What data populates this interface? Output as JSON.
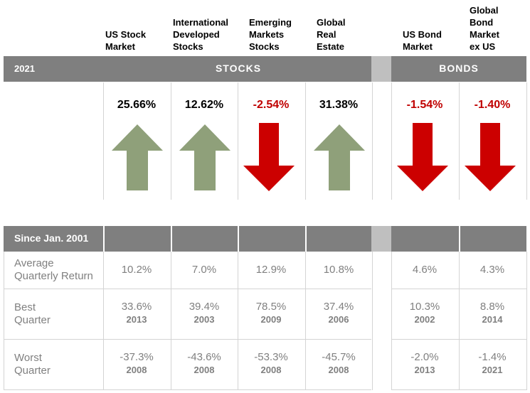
{
  "chart_data": {
    "type": "table",
    "columns": [
      {
        "name": "US Stock\nMarket",
        "group": "stocks",
        "return_2021": "25.66%",
        "direction": "up",
        "avg_quarterly": "10.2%",
        "best": "33.6%",
        "best_year": "2013",
        "worst": "-37.3%",
        "worst_year": "2008"
      },
      {
        "name": "International\nDeveloped\nStocks",
        "group": "stocks",
        "return_2021": "12.62%",
        "direction": "up",
        "avg_quarterly": "7.0%",
        "best": "39.4%",
        "best_year": "2003",
        "worst": "-43.6%",
        "worst_year": "2008"
      },
      {
        "name": "Emerging\nMarkets\nStocks",
        "group": "stocks",
        "return_2021": "-2.54%",
        "direction": "down",
        "avg_quarterly": "12.9%",
        "best": "78.5%",
        "best_year": "2009",
        "worst": "-53.3%",
        "worst_year": "2008"
      },
      {
        "name": "Global\nReal\nEstate",
        "group": "stocks",
        "return_2021": "31.38%",
        "direction": "up",
        "avg_quarterly": "10.8%",
        "best": "37.4%",
        "best_year": "2006",
        "worst": "-45.7%",
        "worst_year": "2008"
      },
      {
        "name": "US Bond\nMarket",
        "group": "bonds",
        "return_2021": "-1.54%",
        "direction": "down",
        "avg_quarterly": "4.6%",
        "best": "10.3%",
        "best_year": "2002",
        "worst": "-2.0%",
        "worst_year": "2013"
      },
      {
        "name": "Global\nBond\nMarket\nex US",
        "group": "bonds",
        "return_2021": "-1.40%",
        "direction": "down",
        "avg_quarterly": "4.3%",
        "best": "8.8%",
        "best_year": "2014",
        "worst": "-1.4%",
        "worst_year": "2021"
      }
    ]
  },
  "header": {
    "year": "2021",
    "stocks": "STOCKS",
    "bonds": "BONDS"
  },
  "since": {
    "title": "Since Jan. 2001"
  },
  "rows": {
    "avg": "Average\nQuarterly Return",
    "best": "Best\nQuarter",
    "worst": "Worst\nQuarter"
  },
  "colors": {
    "up": "#8fa07a",
    "down": "#cc0000",
    "negative_text": "#c00000",
    "bar": "#7f7f7f",
    "gap": "#bfbfbf"
  }
}
